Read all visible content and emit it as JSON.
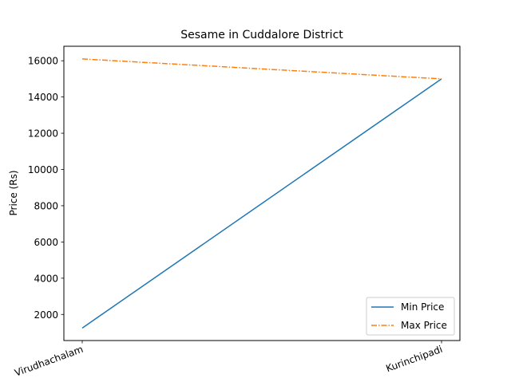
{
  "chart_data": {
    "type": "line",
    "title": "Sesame in Cuddalore District",
    "xlabel": "",
    "ylabel": "Price (Rs)",
    "categories": [
      "Virudhachalam",
      "Kurinchipadi"
    ],
    "series": [
      {
        "name": "Min Price",
        "values": [
          1250,
          15000
        ],
        "color": "#1f77b4",
        "linestyle": "solid"
      },
      {
        "name": "Max Price",
        "values": [
          16100,
          15000
        ],
        "color": "#ff7f0e",
        "linestyle": "dashdot"
      }
    ],
    "ylim": [
      560,
      16800
    ],
    "yticks": [
      2000,
      4000,
      6000,
      8000,
      10000,
      12000,
      14000,
      16000
    ],
    "xtick_rotation": "rotated ~20°",
    "grid": false,
    "legend": "lower-right"
  }
}
